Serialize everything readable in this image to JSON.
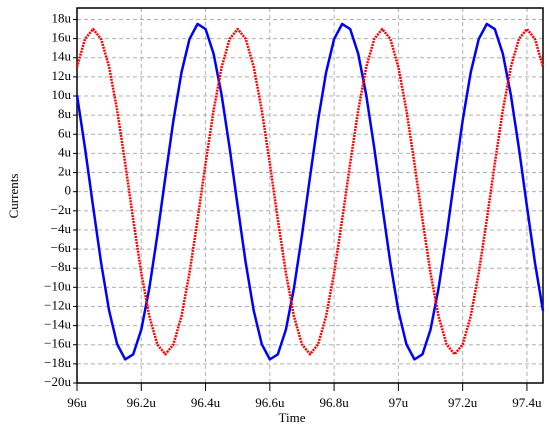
{
  "chart_data": {
    "type": "line",
    "xlabel": "Time",
    "ylabel": "Currents",
    "x": [
      96,
      96.025,
      96.05,
      96.075,
      96.1,
      96.125,
      96.15,
      96.175,
      96.2,
      96.225,
      96.25,
      96.275,
      96.3,
      96.325,
      96.35,
      96.375,
      96.4,
      96.425,
      96.45,
      96.475,
      96.5,
      96.525,
      96.55,
      96.575,
      96.6,
      96.625,
      96.65,
      96.675,
      96.7,
      96.725,
      96.75,
      96.775,
      96.8,
      96.825,
      96.85,
      96.875,
      96.9,
      96.925,
      96.95,
      96.975,
      97,
      97.025,
      97.05,
      97.075,
      97.1,
      97.125,
      97.15,
      97.175,
      97.2,
      97.225,
      97.25,
      97.275,
      97.3,
      97.325,
      97.35,
      97.375,
      97.4,
      97.425,
      97.45
    ],
    "series": [
      {
        "color": "#0000ff",
        "values": [
          10.1,
          4.55,
          -1.53,
          -7.44,
          -12.45,
          -15.95,
          -17.53,
          -17,
          -14.42,
          -10.1,
          -4.55,
          1.53,
          7.44,
          12.45,
          15.95,
          17.53,
          17,
          14.42,
          10.1,
          4.55,
          -1.53,
          -7.44,
          -12.45,
          -15.95,
          -17.53,
          -17,
          -14.42,
          -10.1,
          -4.55,
          1.53,
          7.44,
          12.45,
          15.95,
          17.53,
          17,
          14.42,
          10.1,
          4.55,
          -1.53,
          -7.44,
          -12.45,
          -15.95,
          -17.53,
          -17,
          -14.42,
          -10.1,
          -4.55,
          1.53,
          7.44,
          12.45,
          15.95,
          17.53,
          17,
          14.42,
          10.1,
          4.55,
          -1.53,
          -7.44,
          -12.45
        ]
      },
      {
        "color": "#ff0000",
        "values": [
          13.02,
          15.97,
          17,
          15.97,
          13.02,
          8.5,
          2.95,
          -2.95,
          -8.5,
          -13.02,
          -15.97,
          -17,
          -15.97,
          -13.02,
          -8.5,
          -2.95,
          2.95,
          8.5,
          13.02,
          15.97,
          17,
          15.97,
          13.02,
          8.5,
          2.95,
          -2.95,
          -8.5,
          -13.02,
          -15.97,
          -17,
          -15.97,
          -13.02,
          -8.5,
          -2.95,
          2.95,
          8.5,
          13.02,
          15.97,
          17,
          15.97,
          13.02,
          8.5,
          2.95,
          -2.95,
          -8.5,
          -13.02,
          -15.97,
          -17,
          -15.97,
          -13.02,
          -8.5,
          -2.95,
          2.95,
          8.5,
          13.02,
          15.97,
          17,
          15.97,
          13.02
        ]
      }
    ],
    "xlim": [
      96,
      97.45
    ],
    "ylim": [
      -20,
      19.2
    ],
    "xticks": [
      {
        "value": 96,
        "label": "96u"
      },
      {
        "value": 96.2,
        "label": "96.2u"
      },
      {
        "value": 96.4,
        "label": "96.4u"
      },
      {
        "value": 96.6,
        "label": "96.6u"
      },
      {
        "value": 96.8,
        "label": "96.8u"
      },
      {
        "value": 97,
        "label": "97u"
      },
      {
        "value": 97.2,
        "label": "97.2u"
      },
      {
        "value": 97.4,
        "label": "97.4u"
      }
    ],
    "yticks": [
      {
        "value": -20,
        "label": "−20u"
      },
      {
        "value": -18,
        "label": "−18u"
      },
      {
        "value": -16,
        "label": "−16u"
      },
      {
        "value": -14,
        "label": "−14u"
      },
      {
        "value": -12,
        "label": "−12u"
      },
      {
        "value": -10,
        "label": "−10u"
      },
      {
        "value": -8,
        "label": "−8u"
      },
      {
        "value": -6,
        "label": "−6u"
      },
      {
        "value": -4,
        "label": "−4u"
      },
      {
        "value": -2,
        "label": "−2u"
      },
      0,
      {
        "value": 2,
        "label": "2u"
      },
      {
        "value": 4,
        "label": "4u"
      },
      {
        "value": 6,
        "label": "6u"
      },
      {
        "value": 8,
        "label": "8u"
      },
      {
        "value": 10,
        "label": "10u"
      },
      {
        "value": 12,
        "label": "12u"
      },
      {
        "value": 14,
        "label": "14u"
      },
      {
        "value": 16,
        "label": "16u"
      },
      {
        "value": 18,
        "label": "18u"
      }
    ],
    "grid": true
  }
}
